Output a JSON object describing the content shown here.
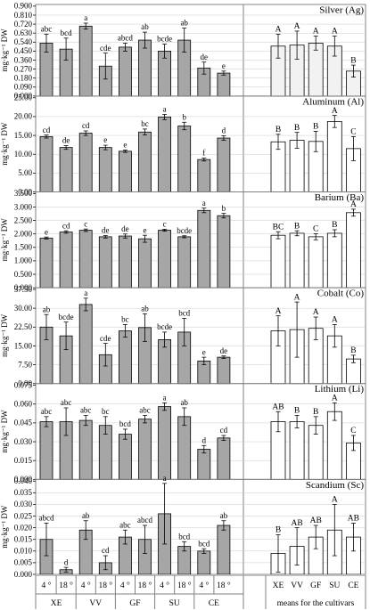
{
  "chart_data": [
    {
      "type": "bar",
      "title": "Silver (Ag)",
      "ylabel": "mg·kg⁻¹ DW",
      "ylim": [
        0,
        0.9
      ],
      "yticks": [
        "0.000",
        "0.090",
        "0.180",
        "0.270",
        "0.360",
        "0.450",
        "0.540",
        "0.630",
        "0.720",
        "0.810",
        "0.900"
      ],
      "series": [
        {
          "values": [
            0.53,
            0.47,
            0.7,
            0.3,
            0.49,
            0.56,
            0.45,
            0.56,
            0.28,
            0.23
          ],
          "errors": [
            0.09,
            0.11,
            0.03,
            0.13,
            0.04,
            0.08,
            0.07,
            0.12,
            0.06,
            0.02
          ],
          "labels": [
            "abc",
            "bcd",
            "a",
            "cde",
            "abcd",
            "ab",
            "bcde",
            "ab",
            "de",
            "e"
          ]
        }
      ],
      "means": {
        "values": [
          0.5,
          0.51,
          0.53,
          0.5,
          0.25
        ],
        "errors": [
          0.12,
          0.14,
          0.07,
          0.1,
          0.06
        ],
        "labels": [
          "A",
          "A",
          "A",
          "A",
          "B"
        ]
      }
    },
    {
      "type": "bar",
      "title": "Aluminum (Al)",
      "ylabel": "mg·kg⁻¹ DW",
      "ylim": [
        0,
        25
      ],
      "yticks": [
        "0.00",
        "5.00",
        "10.00",
        "15.00",
        "20.00",
        "25.00"
      ],
      "series": [
        {
          "values": [
            14.7,
            11.8,
            15.6,
            11.8,
            10.8,
            15.9,
            19.9,
            17.5,
            8.6,
            14.3
          ],
          "errors": [
            0.4,
            0.5,
            0.6,
            0.6,
            0.3,
            0.8,
            0.7,
            1.0,
            0.4,
            0.6
          ],
          "labels": [
            "cd",
            "de",
            "cd",
            "e",
            "e",
            "bc",
            "a",
            "b",
            "f",
            "d"
          ]
        }
      ],
      "means": {
        "values": [
          13.3,
          13.7,
          13.4,
          18.7,
          11.5
        ],
        "errors": [
          2.0,
          2.1,
          2.7,
          1.6,
          3.2
        ],
        "labels": [
          "B",
          "B",
          "B",
          "A",
          "C"
        ]
      }
    },
    {
      "type": "bar",
      "title": "Barium (Ba)",
      "ylabel": "mg·kg⁻¹ DW",
      "ylim": [
        0,
        3.75
      ],
      "yticks": [
        "0.000",
        "0.500",
        "1.000",
        "1.500",
        "2.000",
        "2.500",
        "3.000",
        "3.500"
      ],
      "series": [
        {
          "values": [
            1.98,
            2.22,
            2.29,
            2.03,
            2.06,
            1.95,
            2.29,
            2.03,
            3.08,
            2.87
          ],
          "errors": [
            0.04,
            0.05,
            0.05,
            0.05,
            0.08,
            0.14,
            0.04,
            0.04,
            0.09,
            0.09
          ],
          "labels": [
            "e",
            "cd",
            "c",
            "de",
            "de",
            "e",
            "c",
            "bcde",
            "a",
            "b"
          ]
        }
      ],
      "means": {
        "values": [
          2.09,
          2.17,
          2.03,
          2.17,
          2.99
        ],
        "errors": [
          0.14,
          0.1,
          0.12,
          0.14,
          0.14
        ],
        "labels": [
          "BC",
          "B",
          "C",
          "B",
          "A"
        ]
      }
    },
    {
      "type": "bar",
      "title": "Cobalt (Co)",
      "ylabel": "mg·kg⁻¹ DW",
      "ylim": [
        0,
        37.5
      ],
      "yticks": [
        "0.00",
        "7.50",
        "15.00",
        "22.50",
        "30.00",
        "37.50"
      ],
      "series": [
        {
          "values": [
            22.5,
            19.0,
            31.5,
            11.5,
            21.0,
            22.3,
            17.5,
            20.5,
            9.0,
            10.5
          ],
          "errors": [
            5.0,
            5.5,
            2.5,
            4.5,
            2.5,
            5.5,
            3.0,
            5.5,
            1.5,
            0.5
          ],
          "labels": [
            "ab",
            "bcde",
            "a",
            "cde",
            "bc",
            "ab",
            "bcde",
            "bcd",
            "e",
            "de"
          ]
        }
      ],
      "means": {
        "values": [
          21.0,
          21.5,
          22.0,
          19.0,
          9.8
        ],
        "errors": [
          6.0,
          11.0,
          4.5,
          4.5,
          1.5
        ],
        "labels": [
          "A",
          "A",
          "A",
          "A",
          "B"
        ]
      }
    },
    {
      "type": "bar",
      "title": "Lithium (Li)",
      "ylabel": "mg·kg⁻¹ DW",
      "ylim": [
        0,
        0.075
      ],
      "yticks": [
        "0.000",
        "0.015",
        "0.030",
        "0.045",
        "0.060",
        "0.075"
      ],
      "series": [
        {
          "values": [
            0.046,
            0.046,
            0.047,
            0.043,
            0.036,
            0.048,
            0.058,
            0.05,
            0.024,
            0.033
          ],
          "errors": [
            0.004,
            0.011,
            0.004,
            0.007,
            0.004,
            0.003,
            0.003,
            0.007,
            0.003,
            0.002
          ],
          "labels": [
            "abc",
            "abc",
            "abc",
            "bc",
            "bcd",
            "abc",
            "a",
            "ab",
            "d",
            "cd"
          ]
        }
      ],
      "means": {
        "values": [
          0.046,
          0.046,
          0.043,
          0.054,
          0.029
        ],
        "errors": [
          0.008,
          0.005,
          0.007,
          0.007,
          0.006
        ],
        "labels": [
          "AB",
          "B",
          "B",
          "A",
          "C"
        ]
      }
    },
    {
      "type": "bar",
      "title": "Scandium (Sc)",
      "ylabel": "mg·kg⁻¹ DW",
      "ylim": [
        0,
        0.04
      ],
      "yticks": [
        "0.000",
        "0.005",
        "0.010",
        "0.015",
        "0.020",
        "0.025",
        "0.030",
        "0.035",
        "0.040"
      ],
      "series": [
        {
          "values": [
            0.015,
            0.002,
            0.019,
            0.005,
            0.016,
            0.015,
            0.026,
            0.012,
            0.01,
            0.021
          ],
          "errors": [
            0.007,
            0.001,
            0.004,
            0.003,
            0.003,
            0.006,
            0.013,
            0.002,
            0.001,
            0.002
          ],
          "labels": [
            "abcd",
            "d",
            "ab",
            "cd",
            "abc",
            "abcd",
            "a",
            "bcd",
            "bcd",
            "ab"
          ]
        }
      ],
      "means": {
        "values": [
          0.009,
          0.012,
          0.016,
          0.019,
          0.016
        ],
        "errors": [
          0.008,
          0.008,
          0.005,
          0.011,
          0.006
        ],
        "labels": [
          "B",
          "AB",
          "AB",
          "A",
          "AB"
        ]
      }
    }
  ],
  "x_axis": {
    "temps": [
      "4 °",
      "18 °",
      "4 °",
      "18 °",
      "4 °",
      "18 °",
      "4 °",
      "18 °",
      "4 °",
      "18 °"
    ],
    "cultivars": [
      "XE",
      "VV",
      "GF",
      "SU",
      "CE"
    ],
    "mean_cultivars": [
      "XE",
      "VV",
      "GF",
      "SU",
      "CE"
    ],
    "means_label": "means for the cultivars"
  },
  "colors": {
    "main_bar": "#a6a6a6",
    "mean_bar_silver": "#f2f2f2",
    "mean_bar_other": "#ffffff",
    "panel_border": "#808080",
    "gridline": "#c8c8c8"
  }
}
